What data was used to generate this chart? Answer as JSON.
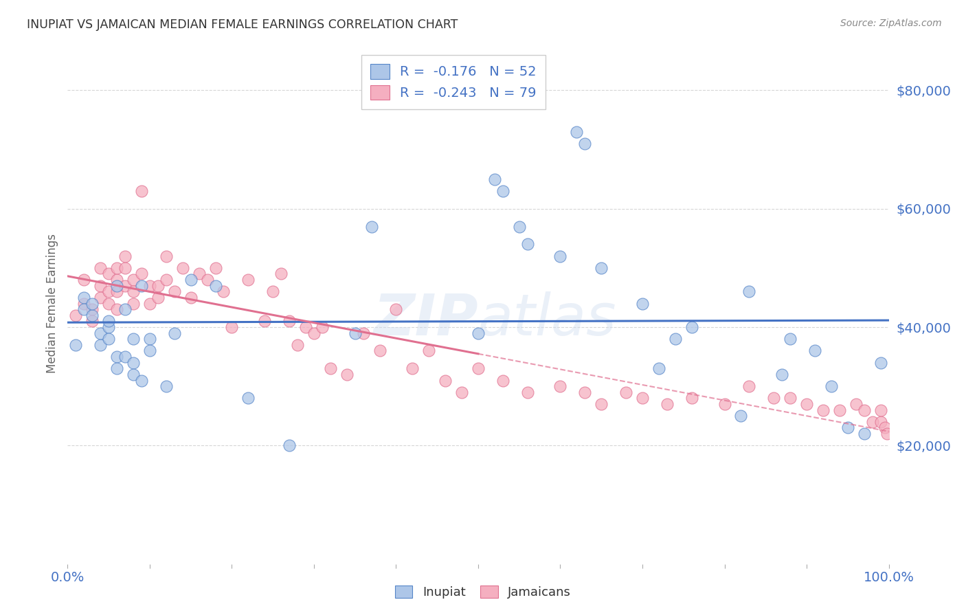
{
  "title": "INUPIAT VS JAMAICAN MEDIAN FEMALE EARNINGS CORRELATION CHART",
  "source": "Source: ZipAtlas.com",
  "ylabel": "Median Female Earnings",
  "watermark": "ZIPatlas",
  "ytick_labels": [
    "$20,000",
    "$40,000",
    "$60,000",
    "$80,000"
  ],
  "ytick_values": [
    20000,
    40000,
    60000,
    80000
  ],
  "ylim": [
    0,
    88000
  ],
  "xlim": [
    0.0,
    1.0
  ],
  "inupiat_color": "#adc6e8",
  "jamaican_color": "#f5afc0",
  "inupiat_line_color": "#4472c4",
  "jamaican_line_color": "#e07090",
  "axis_label_color": "#4472c4",
  "background_color": "#ffffff",
  "grid_color": "#cccccc",
  "inupiat_x": [
    0.01,
    0.02,
    0.02,
    0.03,
    0.03,
    0.04,
    0.04,
    0.05,
    0.05,
    0.05,
    0.06,
    0.06,
    0.06,
    0.07,
    0.07,
    0.08,
    0.08,
    0.08,
    0.09,
    0.09,
    0.1,
    0.1,
    0.12,
    0.13,
    0.15,
    0.18,
    0.22,
    0.27,
    0.35,
    0.37,
    0.5,
    0.52,
    0.53,
    0.55,
    0.56,
    0.6,
    0.62,
    0.63,
    0.65,
    0.7,
    0.72,
    0.74,
    0.76,
    0.82,
    0.83,
    0.87,
    0.88,
    0.91,
    0.93,
    0.95,
    0.97,
    0.99
  ],
  "inupiat_y": [
    37000,
    45000,
    43000,
    42000,
    44000,
    37000,
    39000,
    40000,
    41000,
    38000,
    35000,
    33000,
    47000,
    35000,
    43000,
    34000,
    32000,
    38000,
    31000,
    47000,
    38000,
    36000,
    30000,
    39000,
    48000,
    47000,
    28000,
    20000,
    39000,
    57000,
    39000,
    65000,
    63000,
    57000,
    54000,
    52000,
    73000,
    71000,
    50000,
    44000,
    33000,
    38000,
    40000,
    25000,
    46000,
    32000,
    38000,
    36000,
    30000,
    23000,
    22000,
    34000
  ],
  "jamaican_x": [
    0.01,
    0.02,
    0.02,
    0.03,
    0.03,
    0.04,
    0.04,
    0.04,
    0.05,
    0.05,
    0.05,
    0.06,
    0.06,
    0.06,
    0.06,
    0.07,
    0.07,
    0.07,
    0.08,
    0.08,
    0.08,
    0.09,
    0.09,
    0.1,
    0.1,
    0.11,
    0.11,
    0.12,
    0.12,
    0.13,
    0.14,
    0.15,
    0.16,
    0.17,
    0.18,
    0.19,
    0.2,
    0.22,
    0.24,
    0.25,
    0.26,
    0.27,
    0.28,
    0.29,
    0.3,
    0.31,
    0.32,
    0.34,
    0.36,
    0.38,
    0.4,
    0.42,
    0.44,
    0.46,
    0.48,
    0.5,
    0.53,
    0.56,
    0.6,
    0.63,
    0.65,
    0.68,
    0.7,
    0.73,
    0.76,
    0.8,
    0.83,
    0.86,
    0.88,
    0.9,
    0.92,
    0.94,
    0.96,
    0.97,
    0.98,
    0.99,
    0.99,
    0.995,
    0.998
  ],
  "jamaican_y": [
    42000,
    44000,
    48000,
    43000,
    41000,
    47000,
    45000,
    50000,
    46000,
    49000,
    44000,
    48000,
    50000,
    46000,
    43000,
    50000,
    52000,
    47000,
    48000,
    46000,
    44000,
    63000,
    49000,
    47000,
    44000,
    47000,
    45000,
    52000,
    48000,
    46000,
    50000,
    45000,
    49000,
    48000,
    50000,
    46000,
    40000,
    48000,
    41000,
    46000,
    49000,
    41000,
    37000,
    40000,
    39000,
    40000,
    33000,
    32000,
    39000,
    36000,
    43000,
    33000,
    36000,
    31000,
    29000,
    33000,
    31000,
    29000,
    30000,
    29000,
    27000,
    29000,
    28000,
    27000,
    28000,
    27000,
    30000,
    28000,
    28000,
    27000,
    26000,
    26000,
    27000,
    26000,
    24000,
    24000,
    26000,
    23000,
    22000
  ]
}
